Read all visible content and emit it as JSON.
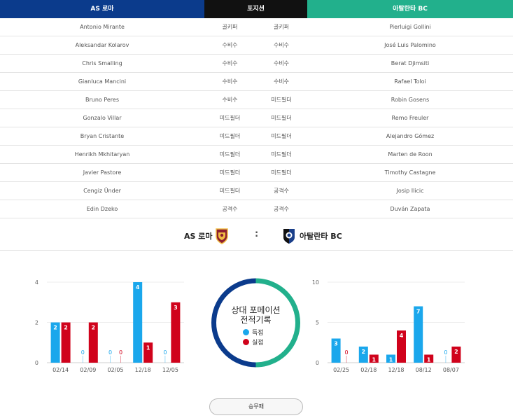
{
  "header": {
    "home": "AS 로마",
    "position": "포지션",
    "away": "아탈란타 BC"
  },
  "lineup": [
    {
      "home": "Antonio Mirante",
      "home_pos": "골키퍼",
      "away_pos": "골키퍼",
      "away": "Pierluigi Gollini"
    },
    {
      "home": "Aleksandar Kolarov",
      "home_pos": "수비수",
      "away_pos": "수비수",
      "away": "José Luis Palomino"
    },
    {
      "home": "Chris Smalling",
      "home_pos": "수비수",
      "away_pos": "수비수",
      "away": "Berat Djimsiti"
    },
    {
      "home": "Gianluca Mancini",
      "home_pos": "수비수",
      "away_pos": "수비수",
      "away": "Rafael Toloi"
    },
    {
      "home": "Bruno Peres",
      "home_pos": "수비수",
      "away_pos": "미드필더",
      "away": "Robin Gosens"
    },
    {
      "home": "Gonzalo Villar",
      "home_pos": "미드필더",
      "away_pos": "미드필더",
      "away": "Remo Freuler"
    },
    {
      "home": "Bryan Cristante",
      "home_pos": "미드필더",
      "away_pos": "미드필더",
      "away": "Alejandro Gómez"
    },
    {
      "home": "Henrikh Mkhitaryan",
      "home_pos": "미드필더",
      "away_pos": "미드필더",
      "away": "Marten de Roon"
    },
    {
      "home": "Javier Pastore",
      "home_pos": "미드필더",
      "away_pos": "미드필더",
      "away": "Timothy Castagne"
    },
    {
      "home": "Cengiz Ünder",
      "home_pos": "미드필더",
      "away_pos": "공격수",
      "away": "Josip Ilicic"
    },
    {
      "home": "Edin Dzeko",
      "home_pos": "공격수",
      "away_pos": "공격수",
      "away": "Duván Zapata"
    }
  ],
  "match": {
    "home_team": "AS 로마",
    "separator": ":",
    "away_team": "아탈란타 BC",
    "home_crest_icon": "roma-crest-icon",
    "away_crest_icon": "atalanta-crest-icon"
  },
  "center": {
    "title_line1": "상대 포메이션",
    "title_line2": "전적기록",
    "legend_scored": "득점",
    "legend_conceded": "실점"
  },
  "colors": {
    "scored": "#1aa7ec",
    "conceded": "#d0021b",
    "home": "#0b3b8c",
    "away": "#22b08c"
  },
  "chart_data": [
    {
      "type": "bar",
      "categories": [
        "02/14",
        "02/09",
        "02/05",
        "12/18",
        "12/05"
      ],
      "ylim": [
        0,
        4
      ],
      "yticks": [
        0,
        2,
        4
      ],
      "series": [
        {
          "name": "득점",
          "values": [
            2,
            0,
            0,
            4,
            0
          ]
        },
        {
          "name": "실점",
          "values": [
            2,
            2,
            0,
            1,
            3
          ]
        }
      ]
    },
    {
      "type": "bar",
      "categories": [
        "02/25",
        "02/18",
        "12/18",
        "08/12",
        "08/07"
      ],
      "ylim": [
        0,
        10
      ],
      "yticks": [
        0,
        5,
        10
      ],
      "series": [
        {
          "name": "득점",
          "values": [
            3,
            2,
            1,
            7,
            0
          ]
        },
        {
          "name": "실점",
          "values": [
            0,
            1,
            4,
            1,
            2
          ]
        }
      ]
    }
  ],
  "button": {
    "label": "승무패"
  }
}
